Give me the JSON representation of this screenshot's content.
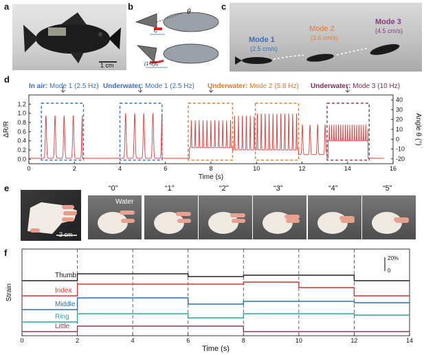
{
  "panel_letters": {
    "a": "a",
    "b": "b",
    "c": "c",
    "d": "d",
    "e": "e",
    "f": "f"
  },
  "panel_a": {
    "scale_bar": "1 cm"
  },
  "panel_b": {
    "theta_label": "θ",
    "l0_label": "l₀",
    "strain_label": "(1+ε)l₀"
  },
  "panel_c": {
    "modes": [
      {
        "name": "Mode 1",
        "speed": "(2.5 cm/s)",
        "color": "#3b6fc4"
      },
      {
        "name": "Mode 2",
        "speed": "(3.6 cm/s)",
        "color": "#e07a2f"
      },
      {
        "name": "Mode 3",
        "speed": "(4.5 cm/s)",
        "color": "#8b3a7a"
      }
    ]
  },
  "panel_d": {
    "annotations": [
      {
        "bold": "In air:",
        "rest": " Mode 1 (2.5 Hz)",
        "color": "#3b6fc4"
      },
      {
        "bold": "Underwater:",
        "rest": " Mode 1 (2.5 Hz)",
        "color": "#3b6fc4"
      },
      {
        "bold": "Underwater:",
        "rest": " Mode 2 (5.8 Hz)",
        "color": "#e07a2f"
      },
      {
        "bold": "Underwater:",
        "rest": " Mode 3 (10 Hz)",
        "color": "#7a2f4f"
      }
    ],
    "ylabel_left": "ΔR/R",
    "ylabel_right": "Angle θ (°)",
    "xlabel": "Time (s)"
  },
  "panel_e": {
    "scale_bar": "2 cm",
    "water_label": "Water",
    "gestures": [
      "“0”",
      "“1”",
      "“2”",
      "“3”",
      "“4”",
      "“5”"
    ]
  },
  "panel_f": {
    "ylabel": "Strain",
    "xlabel": "Time (s)",
    "scale_top": "20%",
    "scale_bottom": "0",
    "channels": [
      {
        "name": "Thumb",
        "color": "#222222"
      },
      {
        "name": "Index",
        "color": "#e03030"
      },
      {
        "name": "Middle",
        "color": "#2a6db5"
      },
      {
        "name": "Ring",
        "color": "#2aa89a"
      },
      {
        "name": "Little",
        "color": "#8b3a5a"
      }
    ]
  },
  "chart_data": [
    {
      "type": "line",
      "panel": "d",
      "xlabel": "Time (s)",
      "ylabel": "ΔR/R",
      "ylabel_right": "Angle θ (°)",
      "xlim": [
        0,
        16
      ],
      "ylim": [
        -0.1,
        1.4
      ],
      "ylim_right": [
        -25,
        45
      ],
      "x_ticks": [
        "0",
        "2",
        "4",
        "6",
        "8",
        "10",
        "12",
        "14",
        "16"
      ],
      "y_ticks": [
        "0.0",
        "0.2",
        "0.4",
        "0.6",
        "0.8",
        "1.0",
        "1.2"
      ],
      "y_right_ticks": [
        "-20",
        "-10",
        "0",
        "10",
        "20",
        "30",
        "40"
      ],
      "series": [
        {
          "color": "#e23b3b",
          "segments": [
            {
              "start": 0.55,
              "end": 2.35,
              "freq": 2.5,
              "peak": 0.95,
              "base": 0.02
            },
            {
              "start": 4.05,
              "end": 5.85,
              "freq": 2.5,
              "peak": 1.0,
              "base": 0.02
            },
            {
              "start": 7.05,
              "end": 8.95,
              "freq": 5.8,
              "peak": 0.85,
              "base": 0.25
            },
            {
              "start": 8.95,
              "end": 9.95,
              "freq": 5.8,
              "peak": 0.95,
              "base": 0.2
            },
            {
              "start": 9.95,
              "end": 11.85,
              "freq": 5.8,
              "peak": 1.0,
              "base": 0.2
            },
            {
              "start": 11.85,
              "end": 13.1,
              "freq": 3.0,
              "peak": 0.75,
              "base": 0.1
            },
            {
              "start": 13.15,
              "end": 14.9,
              "freq": 10,
              "peak": 0.75,
              "base": 0.4
            }
          ]
        }
      ],
      "highlight_boxes": [
        {
          "x0": 0.55,
          "x1": 2.4,
          "color": "#3b6fc4"
        },
        {
          "x0": 4.0,
          "x1": 5.85,
          "color": "#3b6fc4"
        },
        {
          "x0": 7.0,
          "x1": 8.95,
          "color": "#e07a2f"
        },
        {
          "x0": 9.95,
          "x1": 11.85,
          "color": "#e07a2f"
        },
        {
          "x0": 13.1,
          "x1": 14.95,
          "color": "#8b3a5a"
        }
      ]
    },
    {
      "type": "line",
      "panel": "f",
      "xlabel": "Time (s)",
      "ylabel": "Strain",
      "xlim": [
        0,
        14
      ],
      "x_ticks": [
        "0",
        "2",
        "4",
        "6",
        "8",
        "10",
        "12",
        "14"
      ],
      "event_lines_x": [
        2,
        4,
        6,
        8,
        10,
        12
      ],
      "series": [
        {
          "name": "Thumb",
          "steps": [
            [
              0,
              0.0
            ],
            [
              2,
              0.1
            ],
            [
              6,
              0.06
            ],
            [
              8,
              0.08
            ],
            [
              12,
              0.0
            ]
          ]
        },
        {
          "name": "Index",
          "steps": [
            [
              0,
              0.0
            ],
            [
              2,
              0.17
            ],
            [
              8,
              0.2
            ],
            [
              10,
              0.12
            ],
            [
              12,
              0.0
            ]
          ]
        },
        {
          "name": "Middle",
          "steps": [
            [
              0,
              0.0
            ],
            [
              2,
              0.17
            ],
            [
              6,
              0.08
            ],
            [
              8,
              0.12
            ],
            [
              12,
              0.1
            ]
          ]
        },
        {
          "name": "Ring",
          "steps": [
            [
              0,
              0.0
            ],
            [
              2,
              0.12
            ],
            [
              6,
              0.06
            ],
            [
              8,
              0.12
            ],
            [
              12,
              0.1
            ]
          ]
        },
        {
          "name": "Little",
          "steps": [
            [
              0,
              0.0
            ],
            [
              2,
              0.08
            ],
            [
              8,
              0.0
            ]
          ]
        }
      ]
    }
  ]
}
